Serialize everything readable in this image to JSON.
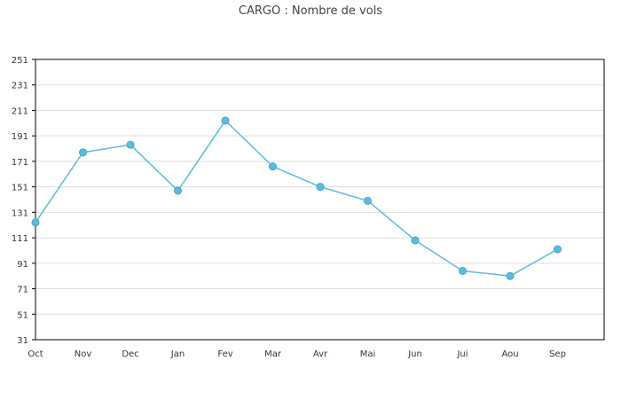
{
  "chart_data": {
    "type": "line",
    "title": "CARGO : Nombre de vols",
    "xlabel": "",
    "ylabel": "",
    "categories": [
      "Oct",
      "Nov",
      "Dec",
      "Jan",
      "Fev",
      "Mar",
      "Avr",
      "Mai",
      "Jun",
      "Jui",
      "Aou",
      "Sep"
    ],
    "series": [
      {
        "values": [
          123,
          178,
          184,
          148,
          203,
          167,
          151,
          140,
          109,
          85,
          81,
          102
        ]
      }
    ],
    "ylim": [
      31,
      251
    ],
    "yticks": [
      31,
      51,
      71,
      91,
      111,
      131,
      151,
      171,
      191,
      211,
      231,
      251
    ],
    "grid": true,
    "legend": "none",
    "colors": {
      "series": "#5bbcdc",
      "grid": "#dddddd",
      "axis": "#000000"
    }
  }
}
